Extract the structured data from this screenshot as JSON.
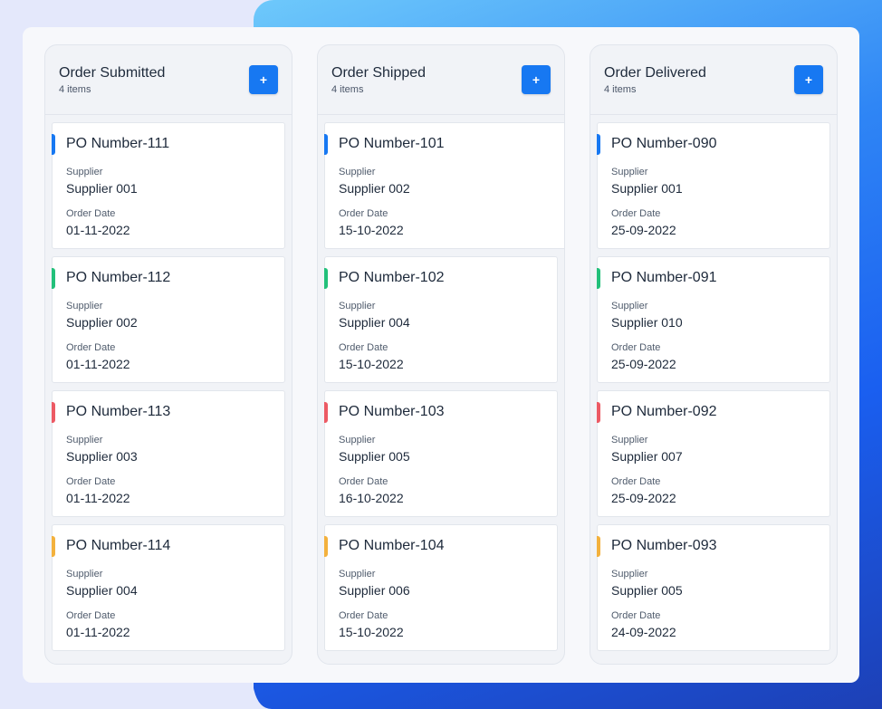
{
  "columns": [
    {
      "title": "Order Submitted",
      "count": "4 items",
      "add_label": "+",
      "cards": [
        {
          "title": "PO Number-111",
          "supplier_label": "Supplier",
          "supplier": "Supplier 001",
          "date_label": "Order Date",
          "date": "01-11-2022",
          "accent": "#1778f2"
        },
        {
          "title": "PO Number-112",
          "supplier_label": "Supplier",
          "supplier": "Supplier 002",
          "date_label": "Order Date",
          "date": "01-11-2022",
          "accent": "#22c07a"
        },
        {
          "title": "PO Number-113",
          "supplier_label": "Supplier",
          "supplier": "Supplier 003",
          "date_label": "Order Date",
          "date": "01-11-2022",
          "accent": "#ec5a64"
        },
        {
          "title": "PO Number-114",
          "supplier_label": "Supplier",
          "supplier": "Supplier 004",
          "date_label": "Order Date",
          "date": "01-11-2022",
          "accent": "#f3b13d"
        }
      ]
    },
    {
      "title": "Order Shipped",
      "count": "4 items",
      "add_label": "+",
      "cards": [
        {
          "title": "PO Number-101",
          "supplier_label": "Supplier",
          "supplier": "Supplier 002",
          "date_label": "Order Date",
          "date": "15-10-2022",
          "accent": "#1778f2"
        },
        {
          "title": "PO Number-102",
          "supplier_label": "Supplier",
          "supplier": "Supplier 004",
          "date_label": "Order Date",
          "date": "15-10-2022",
          "accent": "#22c07a"
        },
        {
          "title": "PO Number-103",
          "supplier_label": "Supplier",
          "supplier": "Supplier 005",
          "date_label": "Order Date",
          "date": "16-10-2022",
          "accent": "#ec5a64"
        },
        {
          "title": "PO Number-104",
          "supplier_label": "Supplier",
          "supplier": "Supplier 006",
          "date_label": "Order Date",
          "date": "15-10-2022",
          "accent": "#f3b13d"
        }
      ]
    },
    {
      "title": "Order Delivered",
      "count": "4 items",
      "add_label": "+",
      "cards": [
        {
          "title": "PO Number-090",
          "supplier_label": "Supplier",
          "supplier": "Supplier 001",
          "date_label": "Order Date",
          "date": "25-09-2022",
          "accent": "#1778f2"
        },
        {
          "title": "PO Number-091",
          "supplier_label": "Supplier",
          "supplier": "Supplier 010",
          "date_label": "Order Date",
          "date": "25-09-2022",
          "accent": "#22c07a"
        },
        {
          "title": "PO Number-092",
          "supplier_label": "Supplier",
          "supplier": "Supplier 007",
          "date_label": "Order Date",
          "date": "25-09-2022",
          "accent": "#ec5a64"
        },
        {
          "title": "PO Number-093",
          "supplier_label": "Supplier",
          "supplier": "Supplier 005",
          "date_label": "Order Date",
          "date": "24-09-2022",
          "accent": "#f3b13d"
        }
      ]
    }
  ],
  "icons": {
    "add": "plus-icon"
  }
}
